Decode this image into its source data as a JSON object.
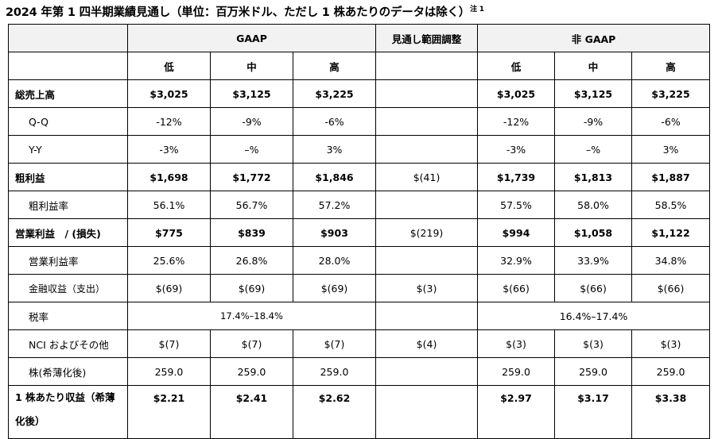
{
  "title": "2024 年第 1 四半期業績見通し（単位：百万米ドル、ただし 1 株あたりのデータは除く）",
  "title_note": "注 1",
  "headers": {
    "gaap": "GAAP",
    "adjust": "見通し範囲調整",
    "nongaap": "非 GAAP",
    "low": "低",
    "mid": "中",
    "high": "高"
  },
  "rows": [
    {
      "label": "総売上高",
      "cells": [
        "$3,025",
        "$3,125",
        "$3,225",
        "",
        "$3,025",
        "$3,125",
        "$3,225"
      ]
    },
    {
      "label": "Q-Q",
      "cells": [
        "-12%",
        "-9%",
        "-6%",
        "",
        "-12%",
        "-9%",
        "-6%"
      ]
    },
    {
      "label": "Y-Y",
      "cells": [
        "-3%",
        "–%",
        "3%",
        "",
        "-3%",
        "–%",
        "3%"
      ]
    },
    {
      "label": "粗利益",
      "cells": [
        "$1,698",
        "$1,772",
        "$1,846",
        "$(41)",
        "$1,739",
        "$1,813",
        "$1,887"
      ]
    },
    {
      "label": "粗利益率",
      "cells": [
        "56.1%",
        "56.7%",
        "57.2%",
        "",
        "57.5%",
        "58.0%",
        "58.5%"
      ]
    },
    {
      "label": "営業利益　/ (損失)",
      "cells": [
        "$775",
        "$839",
        "$903",
        "$(219)",
        "$994",
        "$1,058",
        "$1,122"
      ]
    },
    {
      "label": "営業利益率",
      "cells": [
        "25.6%",
        "26.8%",
        "28.0%",
        "",
        "32.9%",
        "33.9%",
        "34.8%"
      ]
    },
    {
      "label": "金融収益（支出）",
      "cells": [
        "$(69)",
        "$(69)",
        "$(69)",
        "$(3)",
        "$(66)",
        "$(66)",
        "$(66)"
      ]
    },
    {
      "label": "税率",
      "gaap_span": "17.4%–18.4%",
      "nongaap_span": "16.4%–17.4%"
    },
    {
      "label": "NCI およびその他",
      "cells": [
        "$(7)",
        "$(7)",
        "$(7)",
        "$(4)",
        "$(3)",
        "$(3)",
        "$(3)"
      ]
    },
    {
      "label": "株(希薄化後)",
      "cells": [
        "259.0",
        "259.0",
        "259.0",
        "",
        "259.0",
        "259.0",
        "259.0"
      ]
    },
    {
      "label": "1 株あたり収益（希薄化後）",
      "cells": [
        "$2.21",
        "$2.41",
        "$2.62",
        "",
        "$2.97",
        "$3.17",
        "$3.38"
      ]
    }
  ]
}
